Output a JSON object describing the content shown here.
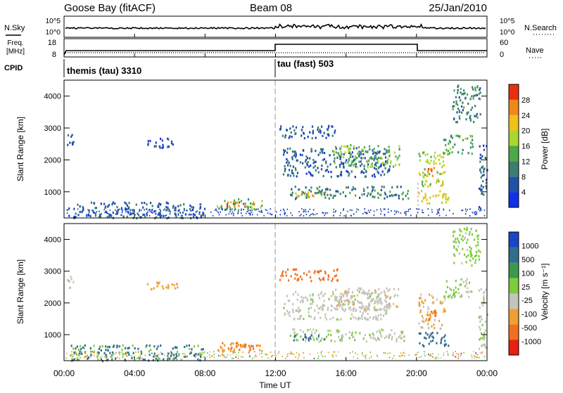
{
  "header": {
    "station": "Goose Bay (fitACF)",
    "beam": "Beam 08",
    "date": "25/Jan/2010"
  },
  "aux_panels": {
    "nsky_label": "N.Sky",
    "nsearch_label": "N.Search",
    "noise_left_ticks": [
      "10^5",
      "10^0"
    ],
    "noise_right_ticks": [
      "10^5",
      "10^0"
    ],
    "freq_label_line1": "Freq.",
    "freq_label_line2": "[MHz]",
    "freq_ticks": [
      "18",
      "8"
    ],
    "nave_label": "Nave",
    "nave_ticks": [
      "60",
      "0"
    ],
    "cpid_label": "CPID",
    "cpid_modes": [
      {
        "name": "themis (tau)",
        "id": "3310",
        "start_hour": 0
      },
      {
        "name": "tau (fast)",
        "id": "503",
        "start_hour": 12
      }
    ]
  },
  "time_axis": {
    "label": "Time UT",
    "ticks": [
      "00:00",
      "04:00",
      "08:00",
      "12:00",
      "16:00",
      "20:00",
      "00:00"
    ]
  },
  "range_axis": {
    "label": "Slant Range [km]",
    "ticks": [
      "1000",
      "2000",
      "3000",
      "4000"
    ]
  },
  "colorbars": {
    "power": {
      "label": "Power [dB]",
      "ticks": [
        "4",
        "8",
        "12",
        "16",
        "20",
        "24",
        "28"
      ],
      "colors": [
        "#1030e8",
        "#2050a8",
        "#3b7d6e",
        "#4caa48",
        "#a8d830",
        "#f0c018",
        "#f08818",
        "#e83010"
      ]
    },
    "velocity": {
      "label": "Velocity [m s⁻¹]",
      "ticks": [
        "1000",
        "500",
        "100",
        "25",
        "-25",
        "-100",
        "-500",
        "-1000"
      ],
      "colors": [
        "#1846c8",
        "#2f6e8c",
        "#3a9a4c",
        "#7dcc3c",
        "#c4c4bc",
        "#f0a030",
        "#f07020",
        "#e82010"
      ]
    }
  },
  "chart_data": {
    "type": "heatmap",
    "x_range_hours": [
      0,
      24
    ],
    "y_range_km": [
      180,
      4500
    ],
    "echo_regions": [
      {
        "t0": 0.1,
        "t1": 0.5,
        "r0": 2450,
        "r1": 2900,
        "power": 6,
        "velocity": 20
      },
      {
        "t0": 4.7,
        "t1": 6.4,
        "r0": 2400,
        "r1": 2700,
        "power": 5,
        "velocity": -50
      },
      {
        "t0": 0.2,
        "t1": 8.0,
        "r0": 200,
        "r1": 700,
        "power": 7,
        "velocity": 110
      },
      {
        "t0": 8.6,
        "t1": 11.2,
        "r0": 450,
        "r1": 800,
        "power": 14,
        "velocity": -90
      },
      {
        "t0": 9.2,
        "t1": 10.8,
        "r0": 550,
        "r1": 730,
        "power": 26,
        "velocity": -150
      },
      {
        "t0": 12.4,
        "t1": 18.5,
        "r0": 1500,
        "r1": 2400,
        "power": 7,
        "velocity": 10
      },
      {
        "t0": 15.2,
        "t1": 19.0,
        "r0": 1800,
        "r1": 2500,
        "power": 15,
        "velocity": -10
      },
      {
        "t0": 12.8,
        "t1": 19.5,
        "r0": 800,
        "r1": 1200,
        "power": 10,
        "velocity": 20
      },
      {
        "t0": 13.0,
        "t1": 14.8,
        "r0": 850,
        "r1": 1050,
        "power": 22,
        "velocity": 120
      },
      {
        "t0": 12.2,
        "t1": 15.5,
        "r0": 2700,
        "r1": 3100,
        "power": 6,
        "velocity": -120
      },
      {
        "t0": 20.1,
        "t1": 21.6,
        "r0": 1200,
        "r1": 2300,
        "power": 18,
        "velocity": -30
      },
      {
        "t0": 20.6,
        "t1": 21.1,
        "r0": 1500,
        "r1": 1800,
        "power": 26,
        "velocity": -300
      },
      {
        "t0": 20.1,
        "t1": 21.8,
        "r0": 650,
        "r1": 1100,
        "power": 20,
        "velocity": 150
      },
      {
        "t0": 21.5,
        "t1": 23.2,
        "r0": 2200,
        "r1": 2800,
        "power": 13,
        "velocity": 30
      },
      {
        "t0": 22.0,
        "t1": 23.6,
        "r0": 3200,
        "r1": 4400,
        "power": 10,
        "velocity": 40
      },
      {
        "t0": 23.5,
        "t1": 24.0,
        "r0": 500,
        "r1": 2500,
        "power": 7,
        "velocity": 20
      }
    ]
  }
}
